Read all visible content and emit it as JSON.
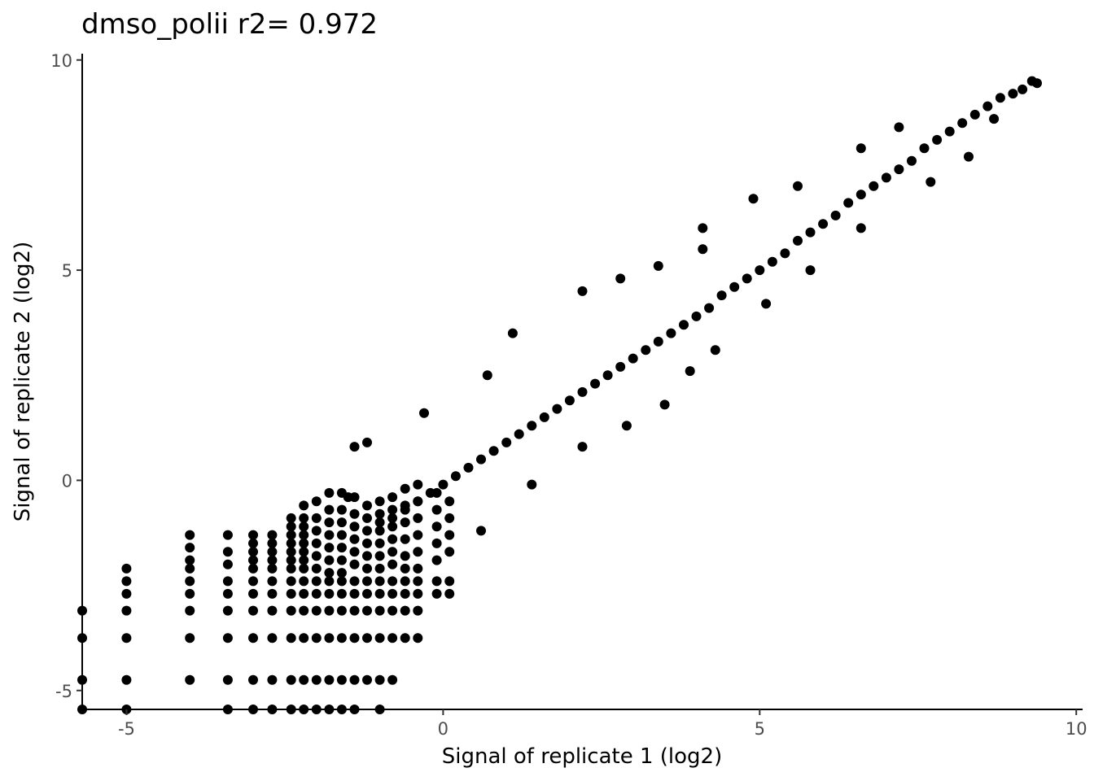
{
  "chart_data": {
    "type": "scatter",
    "title": "dmso_polii r2= 0.972",
    "xlabel": "Signal of replicate 1 (log2)",
    "ylabel": "Signal of replicate 2 (log2)",
    "xlim": [
      -5.7,
      10.1
    ],
    "ylim": [
      -5.45,
      10.15
    ],
    "xticks": [
      -5,
      0,
      5,
      10
    ],
    "yticks": [
      -5,
      0,
      5,
      10
    ],
    "xtick_labels": [
      "-5",
      "0",
      "5",
      "10"
    ],
    "ytick_labels": [
      "-5",
      "0",
      "5",
      "10"
    ],
    "grid": false,
    "legend": "none",
    "point_color": "#000000",
    "series": [
      {
        "points": [
          [
            9.38,
            9.45
          ],
          [
            9.3,
            9.5
          ],
          [
            9.15,
            9.3
          ],
          [
            9.0,
            9.2
          ],
          [
            8.8,
            9.1
          ],
          [
            8.6,
            8.9
          ],
          [
            8.4,
            8.7
          ],
          [
            8.2,
            8.5
          ],
          [
            8.0,
            8.3
          ],
          [
            7.8,
            8.1
          ],
          [
            7.6,
            7.9
          ],
          [
            7.4,
            7.6
          ],
          [
            7.2,
            7.4
          ],
          [
            7.0,
            7.2
          ],
          [
            6.8,
            7.0
          ],
          [
            6.6,
            6.8
          ],
          [
            6.4,
            6.6
          ],
          [
            6.2,
            6.3
          ],
          [
            6.0,
            6.1
          ],
          [
            5.8,
            5.9
          ],
          [
            5.6,
            5.7
          ],
          [
            5.4,
            5.4
          ],
          [
            5.2,
            5.2
          ],
          [
            5.0,
            5.0
          ],
          [
            4.8,
            4.8
          ],
          [
            4.6,
            4.6
          ],
          [
            4.4,
            4.4
          ],
          [
            4.2,
            4.1
          ],
          [
            4.0,
            3.9
          ],
          [
            3.8,
            3.7
          ],
          [
            3.6,
            3.5
          ],
          [
            3.4,
            3.3
          ],
          [
            3.2,
            3.1
          ],
          [
            3.0,
            2.9
          ],
          [
            2.8,
            2.7
          ],
          [
            2.6,
            2.5
          ],
          [
            2.4,
            2.3
          ],
          [
            2.2,
            2.1
          ],
          [
            2.0,
            1.9
          ],
          [
            1.8,
            1.7
          ],
          [
            1.6,
            1.5
          ],
          [
            1.4,
            1.3
          ],
          [
            1.2,
            1.1
          ],
          [
            1.0,
            0.9
          ],
          [
            0.8,
            0.7
          ],
          [
            0.6,
            0.5
          ],
          [
            0.4,
            0.3
          ],
          [
            0.2,
            0.1
          ],
          [
            0.0,
            -0.1
          ],
          [
            -0.2,
            -0.3
          ],
          [
            -0.4,
            -0.5
          ],
          [
            -0.6,
            -0.7
          ],
          [
            -0.8,
            -0.9
          ],
          [
            -1.0,
            -1.0
          ],
          [
            -1.5,
            -0.4
          ],
          [
            -1.4,
            0.8
          ],
          [
            -1.2,
            0.9
          ],
          [
            -0.3,
            1.6
          ],
          [
            0.7,
            2.5
          ],
          [
            1.1,
            3.5
          ],
          [
            2.2,
            4.5
          ],
          [
            2.8,
            4.8
          ],
          [
            3.4,
            5.1
          ],
          [
            4.1,
            5.5
          ],
          [
            4.1,
            6.0
          ],
          [
            4.9,
            6.7
          ],
          [
            5.6,
            7.0
          ],
          [
            6.6,
            7.9
          ],
          [
            7.2,
            8.4
          ],
          [
            0.6,
            -1.2
          ],
          [
            1.4,
            -0.1
          ],
          [
            2.2,
            0.8
          ],
          [
            2.9,
            1.3
          ],
          [
            3.5,
            1.8
          ],
          [
            3.9,
            2.6
          ],
          [
            4.3,
            3.1
          ],
          [
            5.1,
            4.2
          ],
          [
            5.8,
            5.0
          ],
          [
            6.6,
            6.0
          ],
          [
            7.7,
            7.1
          ],
          [
            8.3,
            7.7
          ],
          [
            8.7,
            8.6
          ],
          [
            -5.7,
            -3.1
          ],
          [
            -5.7,
            -3.75
          ],
          [
            -5.7,
            -4.75
          ],
          [
            -5.7,
            -5.45
          ],
          [
            -5.0,
            -2.1
          ],
          [
            -5.0,
            -2.4
          ],
          [
            -5.0,
            -2.7
          ],
          [
            -5.0,
            -3.1
          ],
          [
            -5.0,
            -3.75
          ],
          [
            -5.0,
            -4.75
          ],
          [
            -5.0,
            -5.45
          ],
          [
            -4.0,
            -1.3
          ],
          [
            -4.0,
            -1.6
          ],
          [
            -4.0,
            -1.9
          ],
          [
            -4.0,
            -2.1
          ],
          [
            -4.0,
            -2.4
          ],
          [
            -4.0,
            -2.7
          ],
          [
            -4.0,
            -3.1
          ],
          [
            -4.0,
            -3.75
          ],
          [
            -4.0,
            -4.75
          ],
          [
            -3.4,
            -1.3
          ],
          [
            -3.4,
            -1.7
          ],
          [
            -3.4,
            -2.0
          ],
          [
            -3.4,
            -2.4
          ],
          [
            -3.4,
            -2.7
          ],
          [
            -3.4,
            -3.1
          ],
          [
            -3.4,
            -3.75
          ],
          [
            -3.4,
            -4.75
          ],
          [
            -3.4,
            -5.45
          ],
          [
            -3.0,
            -1.3
          ],
          [
            -3.0,
            -1.5
          ],
          [
            -3.0,
            -1.7
          ],
          [
            -3.0,
            -1.9
          ],
          [
            -3.0,
            -2.1
          ],
          [
            -3.0,
            -2.4
          ],
          [
            -3.0,
            -2.7
          ],
          [
            -3.0,
            -3.1
          ],
          [
            -3.0,
            -3.75
          ],
          [
            -3.0,
            -4.75
          ],
          [
            -3.0,
            -5.45
          ],
          [
            -2.7,
            -1.3
          ],
          [
            -2.7,
            -1.5
          ],
          [
            -2.7,
            -1.7
          ],
          [
            -2.7,
            -1.9
          ],
          [
            -2.7,
            -2.1
          ],
          [
            -2.7,
            -2.4
          ],
          [
            -2.7,
            -2.7
          ],
          [
            -2.7,
            -3.1
          ],
          [
            -2.7,
            -3.75
          ],
          [
            -2.7,
            -4.75
          ],
          [
            -2.7,
            -5.45
          ],
          [
            -2.4,
            -0.9
          ],
          [
            -2.4,
            -1.1
          ],
          [
            -2.4,
            -1.3
          ],
          [
            -2.4,
            -1.5
          ],
          [
            -2.4,
            -1.7
          ],
          [
            -2.4,
            -1.9
          ],
          [
            -2.4,
            -2.1
          ],
          [
            -2.4,
            -2.4
          ],
          [
            -2.4,
            -2.7
          ],
          [
            -2.4,
            -3.1
          ],
          [
            -2.4,
            -3.75
          ],
          [
            -2.4,
            -4.75
          ],
          [
            -2.4,
            -5.45
          ],
          [
            -2.2,
            -0.6
          ],
          [
            -2.2,
            -0.9
          ],
          [
            -2.2,
            -1.1
          ],
          [
            -2.2,
            -1.3
          ],
          [
            -2.2,
            -1.5
          ],
          [
            -2.2,
            -1.7
          ],
          [
            -2.2,
            -1.9
          ],
          [
            -2.2,
            -2.1
          ],
          [
            -2.2,
            -2.4
          ],
          [
            -2.2,
            -2.7
          ],
          [
            -2.2,
            -3.1
          ],
          [
            -2.2,
            -3.75
          ],
          [
            -2.2,
            -4.75
          ],
          [
            -2.2,
            -5.45
          ],
          [
            -2.0,
            -0.5
          ],
          [
            -2.0,
            -0.9
          ],
          [
            -2.0,
            -1.2
          ],
          [
            -2.0,
            -1.5
          ],
          [
            -2.0,
            -1.8
          ],
          [
            -2.0,
            -2.1
          ],
          [
            -2.0,
            -2.4
          ],
          [
            -2.0,
            -2.7
          ],
          [
            -2.0,
            -3.1
          ],
          [
            -2.0,
            -3.75
          ],
          [
            -2.0,
            -4.75
          ],
          [
            -2.0,
            -5.45
          ],
          [
            -1.8,
            -0.3
          ],
          [
            -1.8,
            -0.7
          ],
          [
            -1.8,
            -1.0
          ],
          [
            -1.8,
            -1.3
          ],
          [
            -1.8,
            -1.6
          ],
          [
            -1.8,
            -1.9
          ],
          [
            -1.8,
            -2.2
          ],
          [
            -1.8,
            -2.4
          ],
          [
            -1.8,
            -2.7
          ],
          [
            -1.8,
            -3.1
          ],
          [
            -1.8,
            -3.75
          ],
          [
            -1.8,
            -4.75
          ],
          [
            -1.8,
            -5.45
          ],
          [
            -1.6,
            -0.3
          ],
          [
            -1.6,
            -0.7
          ],
          [
            -1.6,
            -1.0
          ],
          [
            -1.6,
            -1.3
          ],
          [
            -1.6,
            -1.6
          ],
          [
            -1.6,
            -1.9
          ],
          [
            -1.6,
            -2.2
          ],
          [
            -1.6,
            -2.4
          ],
          [
            -1.6,
            -2.7
          ],
          [
            -1.6,
            -3.1
          ],
          [
            -1.6,
            -3.75
          ],
          [
            -1.6,
            -4.75
          ],
          [
            -1.6,
            -5.45
          ],
          [
            -1.4,
            -0.4
          ],
          [
            -1.4,
            -0.8
          ],
          [
            -1.4,
            -1.1
          ],
          [
            -1.4,
            -1.4
          ],
          [
            -1.4,
            -1.7
          ],
          [
            -1.4,
            -2.0
          ],
          [
            -1.4,
            -2.4
          ],
          [
            -1.4,
            -2.7
          ],
          [
            -1.4,
            -3.1
          ],
          [
            -1.4,
            -3.75
          ],
          [
            -1.4,
            -4.75
          ],
          [
            -1.4,
            -5.45
          ],
          [
            -1.2,
            -0.6
          ],
          [
            -1.2,
            -0.9
          ],
          [
            -1.2,
            -1.2
          ],
          [
            -1.2,
            -1.5
          ],
          [
            -1.2,
            -1.8
          ],
          [
            -1.2,
            -2.1
          ],
          [
            -1.2,
            -2.4
          ],
          [
            -1.2,
            -2.7
          ],
          [
            -1.2,
            -3.1
          ],
          [
            -1.2,
            -3.75
          ],
          [
            -1.2,
            -4.75
          ],
          [
            -1.0,
            -0.5
          ],
          [
            -1.0,
            -0.8
          ],
          [
            -1.0,
            -1.2
          ],
          [
            -1.0,
            -1.5
          ],
          [
            -1.0,
            -1.8
          ],
          [
            -1.0,
            -2.1
          ],
          [
            -1.0,
            -2.4
          ],
          [
            -1.0,
            -2.7
          ],
          [
            -1.0,
            -3.1
          ],
          [
            -1.0,
            -3.75
          ],
          [
            -1.0,
            -4.75
          ],
          [
            -1.0,
            -5.45
          ],
          [
            -0.8,
            -0.4
          ],
          [
            -0.8,
            -0.7
          ],
          [
            -0.8,
            -1.1
          ],
          [
            -0.8,
            -1.4
          ],
          [
            -0.8,
            -1.7
          ],
          [
            -0.8,
            -2.0
          ],
          [
            -0.8,
            -2.4
          ],
          [
            -0.8,
            -2.7
          ],
          [
            -0.8,
            -3.1
          ],
          [
            -0.8,
            -3.75
          ],
          [
            -0.8,
            -4.75
          ],
          [
            -0.6,
            -0.2
          ],
          [
            -0.6,
            -0.6
          ],
          [
            -0.6,
            -1.0
          ],
          [
            -0.6,
            -1.4
          ],
          [
            -0.6,
            -1.8
          ],
          [
            -0.6,
            -2.1
          ],
          [
            -0.6,
            -2.4
          ],
          [
            -0.6,
            -2.7
          ],
          [
            -0.6,
            -3.1
          ],
          [
            -0.6,
            -3.75
          ],
          [
            -0.4,
            -0.1
          ],
          [
            -0.4,
            -0.5
          ],
          [
            -0.4,
            -0.9
          ],
          [
            -0.4,
            -1.3
          ],
          [
            -0.4,
            -1.7
          ],
          [
            -0.4,
            -2.1
          ],
          [
            -0.4,
            -2.4
          ],
          [
            -0.4,
            -2.7
          ],
          [
            -0.4,
            -3.1
          ],
          [
            -0.4,
            -3.75
          ],
          [
            -0.1,
            -0.3
          ],
          [
            -0.1,
            -0.7
          ],
          [
            -0.1,
            -1.1
          ],
          [
            -0.1,
            -1.5
          ],
          [
            -0.1,
            -1.9
          ],
          [
            -0.1,
            -2.4
          ],
          [
            -0.1,
            -2.7
          ],
          [
            0.1,
            -0.5
          ],
          [
            0.1,
            -0.9
          ],
          [
            0.1,
            -1.3
          ],
          [
            0.1,
            -1.7
          ],
          [
            0.1,
            -2.4
          ],
          [
            0.1,
            -2.7
          ]
        ]
      }
    ]
  }
}
